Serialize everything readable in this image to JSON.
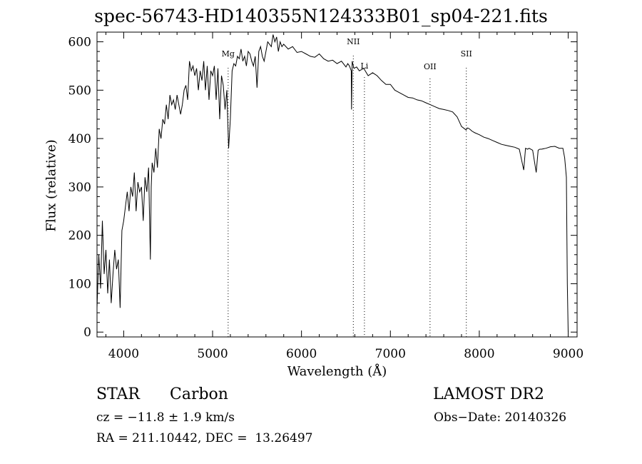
{
  "chart_data": {
    "type": "line",
    "title": "spec-56743-HD140355N124333B01_sp04-221.fits",
    "xlabel": "Wavelength (Å)",
    "ylabel": "Flux (relative)",
    "xlim": [
      3700,
      9100
    ],
    "ylim": [
      -10,
      620
    ],
    "x_ticks": [
      4000,
      5000,
      6000,
      7000,
      8000,
      9000
    ],
    "y_ticks": [
      0,
      100,
      200,
      300,
      400,
      500,
      600
    ],
    "grid": false,
    "series": [
      {
        "x": [
          3700,
          3720,
          3740,
          3760,
          3780,
          3800,
          3820,
          3840,
          3860,
          3880,
          3900,
          3920,
          3940,
          3960,
          3980,
          4000,
          4020,
          4040,
          4060,
          4080,
          4100,
          4120,
          4140,
          4160,
          4180,
          4200,
          4220,
          4240,
          4260,
          4280,
          4300,
          4310,
          4320,
          4340,
          4360,
          4380,
          4400,
          4420,
          4440,
          4460,
          4480,
          4500,
          4520,
          4540,
          4560,
          4580,
          4600,
          4620,
          4640,
          4660,
          4680,
          4700,
          4720,
          4740,
          4760,
          4780,
          4800,
          4820,
          4840,
          4860,
          4880,
          4900,
          4920,
          4940,
          4960,
          4980,
          5000,
          5020,
          5040,
          5060,
          5080,
          5100,
          5120,
          5140,
          5160,
          5170,
          5180,
          5200,
          5220,
          5240,
          5260,
          5280,
          5300,
          5320,
          5340,
          5360,
          5380,
          5400,
          5420,
          5440,
          5460,
          5480,
          5500,
          5520,
          5540,
          5560,
          5580,
          5600,
          5620,
          5640,
          5660,
          5680,
          5700,
          5720,
          5740,
          5760,
          5780,
          5800,
          5850,
          5900,
          5950,
          6000,
          6050,
          6100,
          6150,
          6200,
          6250,
          6300,
          6350,
          6400,
          6450,
          6500,
          6520,
          6540,
          6560,
          6563,
          6570,
          6590,
          6620,
          6650,
          6700,
          6750,
          6800,
          6850,
          6900,
          6950,
          7000,
          7050,
          7100,
          7150,
          7200,
          7250,
          7300,
          7350,
          7400,
          7450,
          7500,
          7550,
          7600,
          7650,
          7700,
          7750,
          7800,
          7850,
          7870,
          7890,
          7920,
          7950,
          8000,
          8050,
          8100,
          8150,
          8200,
          8250,
          8300,
          8350,
          8400,
          8450,
          8500,
          8520,
          8542,
          8560,
          8600,
          8640,
          8662,
          8680,
          8700,
          8750,
          8800,
          8850,
          8900,
          8940,
          8960,
          8980,
          8990,
          9000
        ],
        "values": [
          50,
          160,
          90,
          230,
          120,
          170,
          80,
          150,
          60,
          120,
          170,
          130,
          150,
          50,
          210,
          230,
          260,
          290,
          250,
          300,
          280,
          330,
          250,
          310,
          290,
          300,
          230,
          320,
          290,
          340,
          150,
          300,
          350,
          330,
          380,
          340,
          420,
          400,
          440,
          430,
          470,
          440,
          490,
          470,
          480,
          460,
          490,
          470,
          450,
          470,
          500,
          510,
          480,
          560,
          540,
          550,
          530,
          545,
          500,
          540,
          520,
          560,
          500,
          550,
          480,
          540,
          530,
          550,
          480,
          545,
          440,
          530,
          510,
          460,
          500,
          440,
          380,
          440,
          540,
          555,
          550,
          570,
          565,
          585,
          560,
          570,
          550,
          580,
          575,
          560,
          550,
          570,
          505,
          580,
          590,
          570,
          560,
          580,
          600,
          595,
          590,
          615,
          600,
          610,
          580,
          600,
          590,
          595,
          585,
          590,
          578,
          580,
          575,
          570,
          568,
          575,
          565,
          560,
          562,
          555,
          560,
          548,
          555,
          550,
          540,
          460,
          560,
          545,
          548,
          540,
          545,
          530,
          536,
          530,
          520,
          512,
          512,
          500,
          495,
          490,
          485,
          484,
          480,
          478,
          474,
          470,
          466,
          462,
          460,
          458,
          455,
          445,
          425,
          418,
          422,
          420,
          415,
          412,
          408,
          403,
          400,
          396,
          392,
          388,
          386,
          384,
          382,
          378,
          335,
          380,
          378,
          380,
          376,
          330,
          376,
          378,
          378,
          380,
          383,
          384,
          380,
          380,
          360,
          320,
          100,
          0
        ]
      }
    ],
    "lines": [
      {
        "label": "Mg",
        "x": 5175
      },
      {
        "label": "NII",
        "x": 6583
      },
      {
        "label": "Li",
        "x": 6708
      },
      {
        "label": "OII",
        "x": 7446
      },
      {
        "label": "SII",
        "x": 7854
      }
    ]
  },
  "info": {
    "class": "STAR",
    "subclass": "Carbon",
    "survey": "LAMOST DR2",
    "cz": "cz = −11.8 ± 1.9 km/s",
    "obsdate": "Obs−Date: 20140326",
    "radec": "RA = 211.10442, DEC =  13.26497"
  }
}
